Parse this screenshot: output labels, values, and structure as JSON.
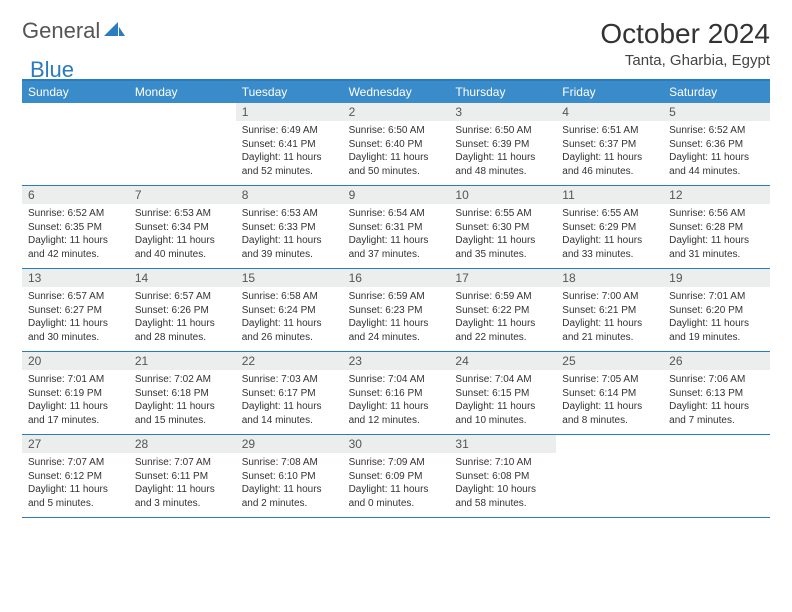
{
  "logo": {
    "text1": "General",
    "text2": "Blue"
  },
  "title": "October 2024",
  "location": "Tanta, Gharbia, Egypt",
  "colors": {
    "header_bg": "#3a8bc9",
    "border": "#2b7bbf",
    "daynum_bg": "#eceded",
    "text": "#333333"
  },
  "dow": [
    "Sunday",
    "Monday",
    "Tuesday",
    "Wednesday",
    "Thursday",
    "Friday",
    "Saturday"
  ],
  "weeks": [
    [
      {
        "n": "",
        "sr": "",
        "ss": "",
        "dl": ""
      },
      {
        "n": "",
        "sr": "",
        "ss": "",
        "dl": ""
      },
      {
        "n": "1",
        "sr": "Sunrise: 6:49 AM",
        "ss": "Sunset: 6:41 PM",
        "dl": "Daylight: 11 hours and 52 minutes."
      },
      {
        "n": "2",
        "sr": "Sunrise: 6:50 AM",
        "ss": "Sunset: 6:40 PM",
        "dl": "Daylight: 11 hours and 50 minutes."
      },
      {
        "n": "3",
        "sr": "Sunrise: 6:50 AM",
        "ss": "Sunset: 6:39 PM",
        "dl": "Daylight: 11 hours and 48 minutes."
      },
      {
        "n": "4",
        "sr": "Sunrise: 6:51 AM",
        "ss": "Sunset: 6:37 PM",
        "dl": "Daylight: 11 hours and 46 minutes."
      },
      {
        "n": "5",
        "sr": "Sunrise: 6:52 AM",
        "ss": "Sunset: 6:36 PM",
        "dl": "Daylight: 11 hours and 44 minutes."
      }
    ],
    [
      {
        "n": "6",
        "sr": "Sunrise: 6:52 AM",
        "ss": "Sunset: 6:35 PM",
        "dl": "Daylight: 11 hours and 42 minutes."
      },
      {
        "n": "7",
        "sr": "Sunrise: 6:53 AM",
        "ss": "Sunset: 6:34 PM",
        "dl": "Daylight: 11 hours and 40 minutes."
      },
      {
        "n": "8",
        "sr": "Sunrise: 6:53 AM",
        "ss": "Sunset: 6:33 PM",
        "dl": "Daylight: 11 hours and 39 minutes."
      },
      {
        "n": "9",
        "sr": "Sunrise: 6:54 AM",
        "ss": "Sunset: 6:31 PM",
        "dl": "Daylight: 11 hours and 37 minutes."
      },
      {
        "n": "10",
        "sr": "Sunrise: 6:55 AM",
        "ss": "Sunset: 6:30 PM",
        "dl": "Daylight: 11 hours and 35 minutes."
      },
      {
        "n": "11",
        "sr": "Sunrise: 6:55 AM",
        "ss": "Sunset: 6:29 PM",
        "dl": "Daylight: 11 hours and 33 minutes."
      },
      {
        "n": "12",
        "sr": "Sunrise: 6:56 AM",
        "ss": "Sunset: 6:28 PM",
        "dl": "Daylight: 11 hours and 31 minutes."
      }
    ],
    [
      {
        "n": "13",
        "sr": "Sunrise: 6:57 AM",
        "ss": "Sunset: 6:27 PM",
        "dl": "Daylight: 11 hours and 30 minutes."
      },
      {
        "n": "14",
        "sr": "Sunrise: 6:57 AM",
        "ss": "Sunset: 6:26 PM",
        "dl": "Daylight: 11 hours and 28 minutes."
      },
      {
        "n": "15",
        "sr": "Sunrise: 6:58 AM",
        "ss": "Sunset: 6:24 PM",
        "dl": "Daylight: 11 hours and 26 minutes."
      },
      {
        "n": "16",
        "sr": "Sunrise: 6:59 AM",
        "ss": "Sunset: 6:23 PM",
        "dl": "Daylight: 11 hours and 24 minutes."
      },
      {
        "n": "17",
        "sr": "Sunrise: 6:59 AM",
        "ss": "Sunset: 6:22 PM",
        "dl": "Daylight: 11 hours and 22 minutes."
      },
      {
        "n": "18",
        "sr": "Sunrise: 7:00 AM",
        "ss": "Sunset: 6:21 PM",
        "dl": "Daylight: 11 hours and 21 minutes."
      },
      {
        "n": "19",
        "sr": "Sunrise: 7:01 AM",
        "ss": "Sunset: 6:20 PM",
        "dl": "Daylight: 11 hours and 19 minutes."
      }
    ],
    [
      {
        "n": "20",
        "sr": "Sunrise: 7:01 AM",
        "ss": "Sunset: 6:19 PM",
        "dl": "Daylight: 11 hours and 17 minutes."
      },
      {
        "n": "21",
        "sr": "Sunrise: 7:02 AM",
        "ss": "Sunset: 6:18 PM",
        "dl": "Daylight: 11 hours and 15 minutes."
      },
      {
        "n": "22",
        "sr": "Sunrise: 7:03 AM",
        "ss": "Sunset: 6:17 PM",
        "dl": "Daylight: 11 hours and 14 minutes."
      },
      {
        "n": "23",
        "sr": "Sunrise: 7:04 AM",
        "ss": "Sunset: 6:16 PM",
        "dl": "Daylight: 11 hours and 12 minutes."
      },
      {
        "n": "24",
        "sr": "Sunrise: 7:04 AM",
        "ss": "Sunset: 6:15 PM",
        "dl": "Daylight: 11 hours and 10 minutes."
      },
      {
        "n": "25",
        "sr": "Sunrise: 7:05 AM",
        "ss": "Sunset: 6:14 PM",
        "dl": "Daylight: 11 hours and 8 minutes."
      },
      {
        "n": "26",
        "sr": "Sunrise: 7:06 AM",
        "ss": "Sunset: 6:13 PM",
        "dl": "Daylight: 11 hours and 7 minutes."
      }
    ],
    [
      {
        "n": "27",
        "sr": "Sunrise: 7:07 AM",
        "ss": "Sunset: 6:12 PM",
        "dl": "Daylight: 11 hours and 5 minutes."
      },
      {
        "n": "28",
        "sr": "Sunrise: 7:07 AM",
        "ss": "Sunset: 6:11 PM",
        "dl": "Daylight: 11 hours and 3 minutes."
      },
      {
        "n": "29",
        "sr": "Sunrise: 7:08 AM",
        "ss": "Sunset: 6:10 PM",
        "dl": "Daylight: 11 hours and 2 minutes."
      },
      {
        "n": "30",
        "sr": "Sunrise: 7:09 AM",
        "ss": "Sunset: 6:09 PM",
        "dl": "Daylight: 11 hours and 0 minutes."
      },
      {
        "n": "31",
        "sr": "Sunrise: 7:10 AM",
        "ss": "Sunset: 6:08 PM",
        "dl": "Daylight: 10 hours and 58 minutes."
      },
      {
        "n": "",
        "sr": "",
        "ss": "",
        "dl": ""
      },
      {
        "n": "",
        "sr": "",
        "ss": "",
        "dl": ""
      }
    ]
  ]
}
